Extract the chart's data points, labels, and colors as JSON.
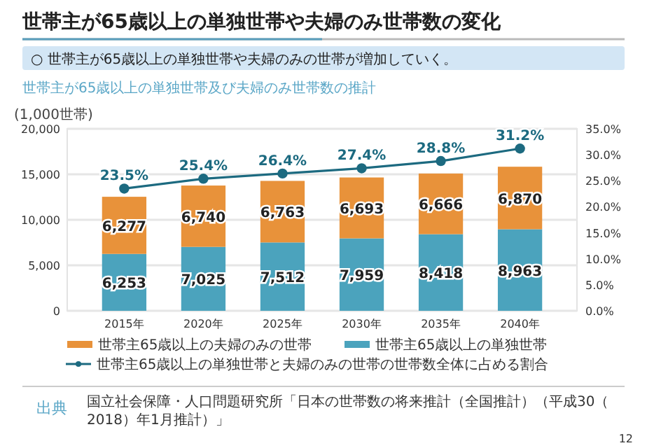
{
  "chart_data": {
    "type": "bar",
    "title": "世帯主が65歳以上の単独世帯や夫婦のみ世帯数の変化",
    "subtitle": "○ 世帯主が65歳以上の単独世帯や夫婦のみの世帯が増加していく。",
    "annotations": [
      "世帯主が65歳以上の単独世帯及び夫婦のみ世帯数の推計",
      "出典",
      "国立社会保障・人口問題研究所「日本の世帯数の将来推計（全国推計）（平成30（2018）年1月推計）」",
      "12"
    ],
    "ylabel": "(1,000世帯)",
    "categories": [
      "2015年",
      "2020年",
      "2025年",
      "2030年",
      "2035年",
      "2040年"
    ],
    "stacked": true,
    "series": [
      {
        "name": "世帯主65歳以上の単独世帯",
        "color": "#4ba3bd",
        "values": [
          6253,
          7025,
          7512,
          7959,
          8418,
          8963
        ],
        "value_labels": [
          "6,253",
          "7,025",
          "7,512",
          "7,959",
          "8,418",
          "8,963"
        ]
      },
      {
        "name": "世帯主65歳以上の夫婦のみの世帯",
        "color": "#e8923a",
        "values": [
          6277,
          6740,
          6763,
          6693,
          6666,
          6870
        ],
        "value_labels": [
          "6,277",
          "6,740",
          "6,763",
          "6,693",
          "6,666",
          "6,870"
        ]
      },
      {
        "name": "世帯主65歳以上の単独世帯と夫婦のみの世帯の世帯数全体に占める割合",
        "type": "line",
        "axis": "y2",
        "color": "#1c6a80",
        "marker": "circle",
        "values": [
          23.5,
          25.4,
          26.4,
          27.4,
          28.8,
          31.2
        ],
        "value_labels": [
          "23.5%",
          "25.4%",
          "26.4%",
          "27.4%",
          "28.8%",
          "31.2%"
        ]
      }
    ],
    "ylim": [
      0,
      20000
    ],
    "yticks": [
      0,
      {
        "value": 5000,
        "label": "5,000"
      },
      {
        "value": 10000,
        "label": "10,000"
      },
      {
        "value": 15000,
        "label": "15,000"
      },
      {
        "value": 20000,
        "label": "20,000"
      }
    ],
    "y2lim": [
      0,
      35
    ],
    "y2ticks": [
      {
        "value": 0,
        "label": "0.0%"
      },
      {
        "value": 5,
        "label": "5.0%"
      },
      {
        "value": 10,
        "label": "10.0%"
      },
      {
        "value": 15,
        "label": "15.0%"
      },
      {
        "value": 20,
        "label": "20.0%"
      },
      {
        "value": 25,
        "label": "25.0%"
      },
      {
        "value": 30,
        "label": "30.0%"
      },
      {
        "value": 35,
        "label": "35.0%"
      }
    ],
    "grid": "y",
    "legend": "bottom"
  }
}
